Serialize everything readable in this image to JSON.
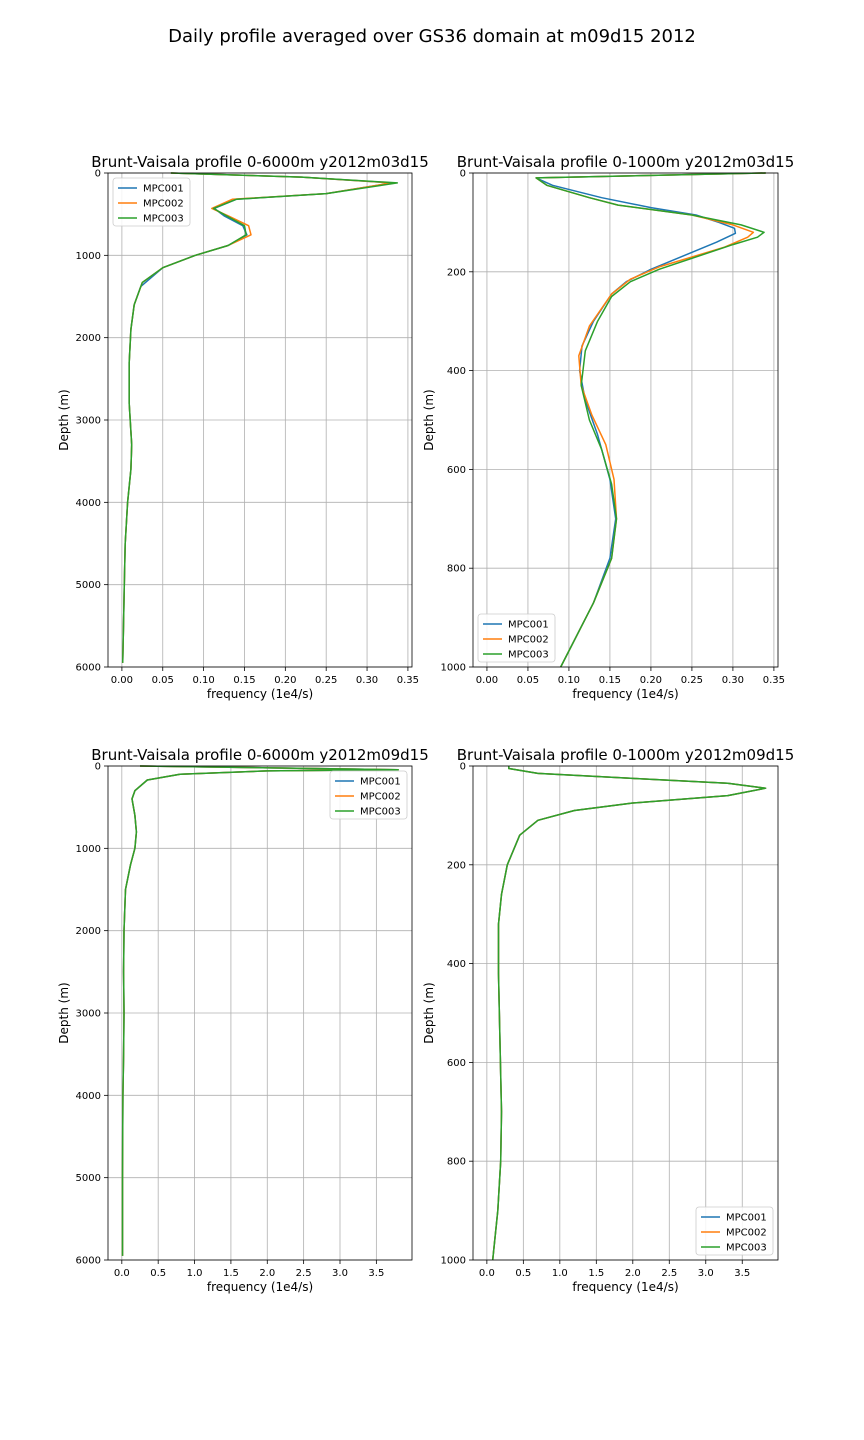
{
  "figure": {
    "suptitle": "Daily profile averaged over GS36 domain at m09d15 2012"
  },
  "colors": {
    "MPC001": "#1f77b4",
    "MPC002": "#ff7f0e",
    "MPC003": "#2ca02c",
    "grid": "#b0b0b0"
  },
  "chart_data": [
    {
      "type": "line",
      "title": "Brunt-Vaisala profile 0-6000m y2012m03d15",
      "xlabel": "frequency (1e4/s)",
      "ylabel": "Depth (m)",
      "xlim": [
        -0.017,
        0.355
      ],
      "ylim": [
        6000,
        0
      ],
      "xticks": [
        "0.00",
        "0.05",
        "0.10",
        "0.15",
        "0.20",
        "0.25",
        "0.30",
        "0.35"
      ],
      "xtick_values": [
        0,
        0.05,
        0.1,
        0.15,
        0.2,
        0.25,
        0.3,
        0.35
      ],
      "yticks": [
        "0",
        "1000",
        "2000",
        "3000",
        "4000",
        "5000",
        "6000"
      ],
      "ytick_values": [
        0,
        1000,
        2000,
        3000,
        4000,
        5000,
        6000
      ],
      "grid": true,
      "legend": "upper left",
      "series": [
        {
          "name": "MPC001",
          "x": [
            0.06,
            0.22,
            0.33,
            0.25,
            0.14,
            0.113,
            0.125,
            0.148,
            0.153,
            0.13,
            0.09,
            0.05,
            0.023,
            0.015,
            0.011,
            0.009,
            0.009,
            0.012,
            0.011,
            0.007,
            0.004,
            0.003,
            0.002,
            0.001
          ],
          "y": [
            0,
            50,
            120,
            250,
            320,
            430,
            520,
            640,
            750,
            880,
            1000,
            1150,
            1380,
            1600,
            1900,
            2300,
            2800,
            3300,
            3600,
            4000,
            4500,
            5000,
            5500,
            5950
          ]
        },
        {
          "name": "MPC002",
          "x": [
            0.06,
            0.22,
            0.33,
            0.25,
            0.135,
            0.11,
            0.13,
            0.155,
            0.158,
            0.13,
            0.09,
            0.05,
            0.025,
            0.015,
            0.011,
            0.009,
            0.009,
            0.012,
            0.011,
            0.007,
            0.004,
            0.003,
            0.002,
            0.001
          ],
          "y": [
            0,
            50,
            120,
            250,
            320,
            430,
            520,
            640,
            750,
            880,
            1000,
            1150,
            1330,
            1600,
            1900,
            2300,
            2800,
            3300,
            3600,
            4000,
            4500,
            5000,
            5500,
            5950
          ]
        },
        {
          "name": "MPC003",
          "x": [
            0.06,
            0.22,
            0.337,
            0.25,
            0.14,
            0.112,
            0.128,
            0.15,
            0.152,
            0.13,
            0.09,
            0.05,
            0.025,
            0.015,
            0.011,
            0.009,
            0.009,
            0.012,
            0.011,
            0.007,
            0.004,
            0.003,
            0.002,
            0.001
          ],
          "y": [
            0,
            50,
            120,
            250,
            320,
            430,
            520,
            640,
            750,
            880,
            1000,
            1150,
            1330,
            1600,
            1900,
            2300,
            2800,
            3300,
            3600,
            4000,
            4500,
            5000,
            5500,
            5950
          ]
        }
      ]
    },
    {
      "type": "line",
      "title": "Brunt-Vaisala profile 0-1000m y2012m03d15",
      "xlabel": "frequency (1e4/s)",
      "ylabel": "Depth (m)",
      "xlim": [
        -0.017,
        0.355
      ],
      "ylim": [
        1000,
        0
      ],
      "xticks": [
        "0.00",
        "0.05",
        "0.10",
        "0.15",
        "0.20",
        "0.25",
        "0.30",
        "0.35"
      ],
      "xtick_values": [
        0,
        0.05,
        0.1,
        0.15,
        0.2,
        0.25,
        0.3,
        0.35
      ],
      "yticks": [
        "0",
        "200",
        "400",
        "600",
        "800",
        "1000"
      ],
      "ytick_values": [
        0,
        200,
        400,
        600,
        800,
        1000
      ],
      "grid": true,
      "legend": "lower left",
      "series": [
        {
          "name": "MPC001",
          "x": [
            0.34,
            0.06,
            0.08,
            0.14,
            0.2,
            0.255,
            0.283,
            0.302,
            0.303,
            0.28,
            0.2,
            0.17,
            0.152,
            0.13,
            0.116,
            0.113,
            0.12,
            0.135,
            0.15,
            0.157,
            0.15,
            0.13,
            0.09
          ],
          "y": [
            0,
            10,
            25,
            50,
            70,
            85,
            100,
            112,
            122,
            140,
            195,
            220,
            245,
            300,
            350,
            400,
            460,
            530,
            620,
            700,
            780,
            870,
            1000
          ]
        },
        {
          "name": "MPC002",
          "x": [
            0.34,
            0.06,
            0.073,
            0.125,
            0.16,
            0.25,
            0.3,
            0.325,
            0.318,
            0.29,
            0.21,
            0.175,
            0.152,
            0.125,
            0.112,
            0.115,
            0.128,
            0.145,
            0.155,
            0.158,
            0.152,
            0.13,
            0.09
          ],
          "y": [
            0,
            10,
            25,
            50,
            65,
            85,
            105,
            120,
            130,
            150,
            190,
            215,
            245,
            310,
            370,
            430,
            490,
            550,
            620,
            700,
            780,
            870,
            1000
          ]
        },
        {
          "name": "MPC003",
          "x": [
            0.34,
            0.06,
            0.073,
            0.125,
            0.16,
            0.25,
            0.31,
            0.338,
            0.33,
            0.3,
            0.21,
            0.175,
            0.152,
            0.135,
            0.12,
            0.115,
            0.125,
            0.14,
            0.152,
            0.158,
            0.152,
            0.13,
            0.09
          ],
          "y": [
            0,
            10,
            25,
            50,
            65,
            85,
            105,
            120,
            130,
            145,
            195,
            220,
            250,
            300,
            360,
            430,
            500,
            560,
            630,
            700,
            780,
            870,
            1000
          ]
        }
      ]
    },
    {
      "type": "line",
      "title": "Brunt-Vaisala profile 0-6000m y2012m09d15",
      "xlabel": "frequency (1e4/s)",
      "ylabel": "Depth (m)",
      "xlim": [
        -0.19,
        3.99
      ],
      "ylim": [
        6000,
        0
      ],
      "xticks": [
        "0.0",
        "0.5",
        "1.0",
        "1.5",
        "2.0",
        "2.5",
        "3.0",
        "3.5"
      ],
      "xtick_values": [
        0,
        0.5,
        1,
        1.5,
        2,
        2.5,
        3,
        3.5
      ],
      "yticks": [
        "0",
        "1000",
        "2000",
        "3000",
        "4000",
        "5000",
        "6000"
      ],
      "ytick_values": [
        0,
        1000,
        2000,
        3000,
        4000,
        5000,
        6000
      ],
      "grid": true,
      "legend": "upper right",
      "series": [
        {
          "name": "MPC001",
          "x": [
            0.25,
            3.8,
            2.0,
            0.8,
            0.35,
            0.18,
            0.14,
            0.18,
            0.2,
            0.18,
            0.12,
            0.05,
            0.03,
            0.025,
            0.03,
            0.025,
            0.015,
            0.01,
            0.01
          ],
          "y": [
            0,
            45,
            60,
            100,
            170,
            300,
            400,
            600,
            800,
            1000,
            1200,
            1500,
            2000,
            2500,
            3000,
            3500,
            4000,
            5000,
            5950
          ]
        },
        {
          "name": "MPC002",
          "x": [
            0.25,
            3.8,
            2.0,
            0.8,
            0.35,
            0.18,
            0.14,
            0.18,
            0.2,
            0.18,
            0.12,
            0.05,
            0.03,
            0.025,
            0.03,
            0.025,
            0.015,
            0.01,
            0.01
          ],
          "y": [
            0,
            45,
            60,
            100,
            170,
            300,
            400,
            600,
            800,
            1000,
            1200,
            1500,
            2000,
            2500,
            3000,
            3500,
            4000,
            5000,
            5950
          ]
        },
        {
          "name": "MPC003",
          "x": [
            0.25,
            3.8,
            2.0,
            0.8,
            0.35,
            0.18,
            0.14,
            0.18,
            0.2,
            0.18,
            0.12,
            0.05,
            0.03,
            0.025,
            0.03,
            0.025,
            0.015,
            0.01,
            0.01
          ],
          "y": [
            0,
            45,
            60,
            100,
            170,
            300,
            400,
            600,
            800,
            1000,
            1200,
            1500,
            2000,
            2500,
            3000,
            3500,
            4000,
            5000,
            5950
          ]
        }
      ]
    },
    {
      "type": "line",
      "title": "Brunt-Vaisala profile 0-1000m y2012m09d15",
      "xlabel": "frequency (1e4/s)",
      "ylabel": "Depth (m)",
      "xlim": [
        -0.19,
        3.99
      ],
      "ylim": [
        1000,
        0
      ],
      "xticks": [
        "0.0",
        "0.5",
        "1.0",
        "1.5",
        "2.0",
        "2.5",
        "3.0",
        "3.5"
      ],
      "xtick_values": [
        0,
        0.5,
        1,
        1.5,
        2,
        2.5,
        3,
        3.5
      ],
      "yticks": [
        "0",
        "200",
        "400",
        "600",
        "800",
        "1000"
      ],
      "ytick_values": [
        0,
        200,
        400,
        600,
        800,
        1000
      ],
      "grid": true,
      "legend": "lower right",
      "series": [
        {
          "name": "MPC001",
          "x": [
            0.3,
            0.3,
            0.7,
            2.0,
            3.3,
            3.82,
            3.3,
            2.0,
            1.2,
            0.7,
            0.45,
            0.28,
            0.2,
            0.16,
            0.16,
            0.18,
            0.2,
            0.19,
            0.15,
            0.08
          ],
          "y": [
            0,
            5,
            15,
            25,
            35,
            45,
            60,
            75,
            90,
            110,
            140,
            200,
            260,
            320,
            420,
            560,
            700,
            800,
            900,
            1000
          ]
        },
        {
          "name": "MPC002",
          "x": [
            0.3,
            0.3,
            0.7,
            2.0,
            3.3,
            3.82,
            3.3,
            2.0,
            1.2,
            0.7,
            0.45,
            0.28,
            0.2,
            0.16,
            0.16,
            0.18,
            0.2,
            0.19,
            0.15,
            0.08
          ],
          "y": [
            0,
            5,
            15,
            25,
            35,
            45,
            60,
            75,
            90,
            110,
            140,
            200,
            260,
            320,
            420,
            560,
            700,
            800,
            900,
            1000
          ]
        },
        {
          "name": "MPC003",
          "x": [
            0.3,
            0.3,
            0.7,
            2.0,
            3.3,
            3.82,
            3.3,
            2.0,
            1.2,
            0.7,
            0.45,
            0.28,
            0.2,
            0.16,
            0.16,
            0.18,
            0.2,
            0.19,
            0.15,
            0.08
          ],
          "y": [
            0,
            5,
            15,
            25,
            35,
            45,
            60,
            75,
            90,
            110,
            140,
            200,
            260,
            320,
            420,
            560,
            700,
            800,
            900,
            1000
          ]
        }
      ]
    }
  ]
}
